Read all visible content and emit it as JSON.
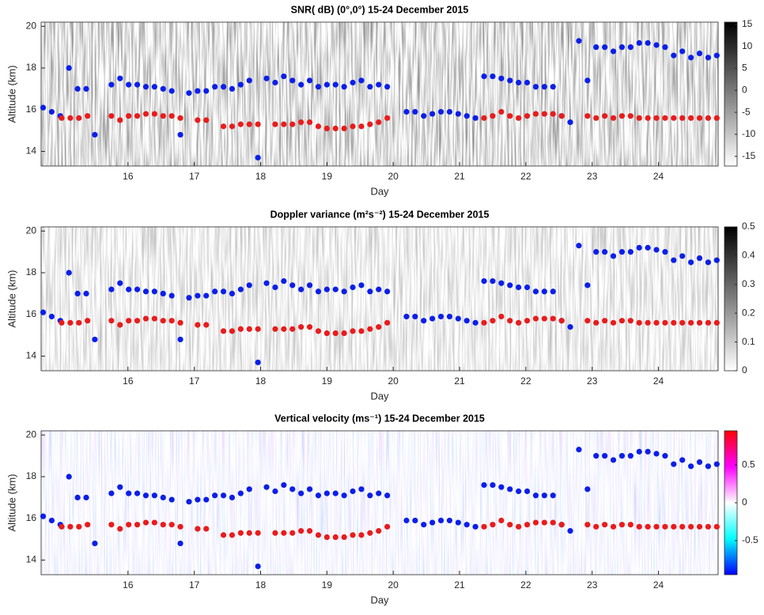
{
  "chart_data": [
    {
      "type": "scatter",
      "title": "SNR( dB) (0°,0°) 15-24 December 2015",
      "x_label": "Day",
      "y_label": "Altitude (km)",
      "xlim": [
        14.69,
        24.9
      ],
      "xticks": [
        16,
        17,
        18,
        19,
        20,
        21,
        22,
        23,
        24
      ],
      "ylim": [
        13.3,
        20.2
      ],
      "yticks": [
        14,
        16,
        18,
        20
      ],
      "clim": [
        -17.2,
        15.5
      ],
      "cticks": [
        -15,
        -10,
        -5,
        0,
        5,
        10,
        15
      ],
      "colormap": [
        "#ffffff",
        "#000000"
      ],
      "series": [
        {
          "color": "#0b1fe8",
          "x": [
            14.72,
            14.85,
            14.98,
            15.11,
            15.24,
            15.37,
            15.5,
            15.75,
            15.88,
            16.01,
            16.14,
            16.27,
            16.4,
            16.53,
            16.66,
            16.79,
            16.92,
            17.05,
            17.18,
            17.31,
            17.44,
            17.57,
            17.7,
            17.83,
            17.96,
            18.09,
            18.22,
            18.35,
            18.48,
            18.61,
            18.74,
            18.87,
            19.0,
            19.13,
            19.26,
            19.39,
            19.52,
            19.65,
            19.78,
            19.91,
            20.2,
            20.33,
            20.46,
            20.59,
            20.72,
            20.85,
            20.98,
            21.11,
            21.24,
            21.37,
            21.5,
            21.63,
            21.76,
            21.89,
            22.02,
            22.15,
            22.28,
            22.41,
            22.54,
            22.67,
            22.8,
            22.93,
            23.06,
            23.19,
            23.32,
            23.45,
            23.58,
            23.71,
            23.84,
            23.97,
            24.1,
            24.23,
            24.36,
            24.49,
            24.62,
            24.75,
            24.88
          ],
          "values": [
            16.1,
            15.9,
            15.7,
            18.0,
            17.0,
            17.0,
            14.8,
            17.2,
            17.5,
            17.2,
            17.2,
            17.1,
            17.1,
            17.0,
            16.9,
            14.8,
            16.8,
            16.9,
            16.9,
            17.1,
            17.1,
            17.0,
            17.2,
            17.4,
            13.7,
            17.5,
            17.3,
            17.6,
            17.4,
            17.2,
            17.4,
            17.1,
            17.2,
            17.2,
            17.1,
            17.3,
            17.4,
            17.1,
            17.2,
            17.1,
            15.9,
            15.9,
            15.7,
            15.8,
            15.9,
            15.9,
            15.8,
            15.7,
            15.6,
            17.6,
            17.6,
            17.5,
            17.4,
            17.3,
            17.3,
            17.1,
            17.1,
            17.1,
            15.7,
            15.4,
            19.3,
            17.4,
            19.0,
            19.0,
            18.8,
            19.0,
            19.0,
            19.2,
            19.2,
            19.1,
            19.0,
            18.6,
            18.8,
            18.5,
            18.7,
            18.5,
            18.6
          ]
        },
        {
          "color": "#e81c1c",
          "x": [
            15.0,
            15.13,
            15.26,
            15.39,
            15.75,
            15.88,
            16.01,
            16.14,
            16.27,
            16.4,
            16.53,
            16.66,
            16.79,
            17.05,
            17.18,
            17.44,
            17.57,
            17.7,
            17.83,
            17.96,
            18.22,
            18.35,
            18.48,
            18.61,
            18.74,
            18.87,
            19.0,
            19.13,
            19.26,
            19.39,
            19.52,
            19.65,
            19.78,
            19.91,
            21.37,
            21.5,
            21.63,
            21.76,
            21.89,
            22.02,
            22.15,
            22.28,
            22.41,
            22.54,
            22.93,
            23.06,
            23.19,
            23.32,
            23.45,
            23.58,
            23.71,
            23.84,
            23.97,
            24.1,
            24.23,
            24.36,
            24.49,
            24.62,
            24.75,
            24.88
          ],
          "values": [
            15.6,
            15.6,
            15.6,
            15.7,
            15.7,
            15.5,
            15.7,
            15.7,
            15.8,
            15.8,
            15.7,
            15.7,
            15.6,
            15.5,
            15.5,
            15.2,
            15.2,
            15.3,
            15.3,
            15.3,
            15.3,
            15.3,
            15.3,
            15.4,
            15.4,
            15.2,
            15.1,
            15.1,
            15.1,
            15.2,
            15.2,
            15.3,
            15.4,
            15.6,
            15.6,
            15.7,
            15.9,
            15.7,
            15.6,
            15.7,
            15.8,
            15.8,
            15.8,
            15.7,
            15.7,
            15.6,
            15.7,
            15.6,
            15.7,
            15.7,
            15.6,
            15.6,
            15.6,
            15.6,
            15.6,
            15.6,
            15.6,
            15.6,
            15.6,
            15.6
          ]
        }
      ]
    },
    {
      "type": "scatter",
      "title": "Doppler variance (m²s⁻²) 15-24 December 2015",
      "x_label": "Day",
      "y_label": "Altitude (km)",
      "xlim": [
        14.69,
        24.9
      ],
      "xticks": [
        16,
        17,
        18,
        19,
        20,
        21,
        22,
        23,
        24
      ],
      "ylim": [
        13.3,
        20.2
      ],
      "yticks": [
        14,
        16,
        18,
        20
      ],
      "clim": [
        0,
        0.5
      ],
      "cticks": [
        0,
        0.1,
        0.2,
        0.3,
        0.4,
        0.5
      ],
      "colormap": [
        "#ffffff",
        "#000000"
      ],
      "series": [
        {
          "color": "#0b1fe8",
          "x": [
            14.72,
            14.85,
            14.98,
            15.11,
            15.24,
            15.37,
            15.5,
            15.75,
            15.88,
            16.01,
            16.14,
            16.27,
            16.4,
            16.53,
            16.66,
            16.79,
            16.92,
            17.05,
            17.18,
            17.31,
            17.44,
            17.57,
            17.7,
            17.83,
            17.96,
            18.09,
            18.22,
            18.35,
            18.48,
            18.61,
            18.74,
            18.87,
            19.0,
            19.13,
            19.26,
            19.39,
            19.52,
            19.65,
            19.78,
            19.91,
            20.2,
            20.33,
            20.46,
            20.59,
            20.72,
            20.85,
            20.98,
            21.11,
            21.24,
            21.37,
            21.5,
            21.63,
            21.76,
            21.89,
            22.02,
            22.15,
            22.28,
            22.41,
            22.54,
            22.67,
            22.8,
            22.93,
            23.06,
            23.19,
            23.32,
            23.45,
            23.58,
            23.71,
            23.84,
            23.97,
            24.1,
            24.23,
            24.36,
            24.49,
            24.62,
            24.75,
            24.88
          ],
          "values": [
            16.1,
            15.9,
            15.7,
            18.0,
            17.0,
            17.0,
            14.8,
            17.2,
            17.5,
            17.2,
            17.2,
            17.1,
            17.1,
            17.0,
            16.9,
            14.8,
            16.8,
            16.9,
            16.9,
            17.1,
            17.1,
            17.0,
            17.2,
            17.4,
            13.7,
            17.5,
            17.3,
            17.6,
            17.4,
            17.2,
            17.4,
            17.1,
            17.2,
            17.2,
            17.1,
            17.3,
            17.4,
            17.1,
            17.2,
            17.1,
            15.9,
            15.9,
            15.7,
            15.8,
            15.9,
            15.9,
            15.8,
            15.7,
            15.6,
            17.6,
            17.6,
            17.5,
            17.4,
            17.3,
            17.3,
            17.1,
            17.1,
            17.1,
            15.7,
            15.4,
            19.3,
            17.4,
            19.0,
            19.0,
            18.8,
            19.0,
            19.0,
            19.2,
            19.2,
            19.1,
            19.0,
            18.6,
            18.8,
            18.5,
            18.7,
            18.5,
            18.6
          ]
        },
        {
          "color": "#e81c1c",
          "x": [
            15.0,
            15.13,
            15.26,
            15.39,
            15.75,
            15.88,
            16.01,
            16.14,
            16.27,
            16.4,
            16.53,
            16.66,
            16.79,
            17.05,
            17.18,
            17.44,
            17.57,
            17.7,
            17.83,
            17.96,
            18.22,
            18.35,
            18.48,
            18.61,
            18.74,
            18.87,
            19.0,
            19.13,
            19.26,
            19.39,
            19.52,
            19.65,
            19.78,
            19.91,
            21.37,
            21.5,
            21.63,
            21.76,
            21.89,
            22.02,
            22.15,
            22.28,
            22.41,
            22.54,
            22.93,
            23.06,
            23.19,
            23.32,
            23.45,
            23.58,
            23.71,
            23.84,
            23.97,
            24.1,
            24.23,
            24.36,
            24.49,
            24.62,
            24.75,
            24.88
          ],
          "values": [
            15.6,
            15.6,
            15.6,
            15.7,
            15.7,
            15.5,
            15.7,
            15.7,
            15.8,
            15.8,
            15.7,
            15.7,
            15.6,
            15.5,
            15.5,
            15.2,
            15.2,
            15.3,
            15.3,
            15.3,
            15.3,
            15.3,
            15.3,
            15.4,
            15.4,
            15.2,
            15.1,
            15.1,
            15.1,
            15.2,
            15.2,
            15.3,
            15.4,
            15.6,
            15.6,
            15.7,
            15.9,
            15.7,
            15.6,
            15.7,
            15.8,
            15.8,
            15.8,
            15.7,
            15.7,
            15.6,
            15.7,
            15.6,
            15.7,
            15.7,
            15.6,
            15.6,
            15.6,
            15.6,
            15.6,
            15.6,
            15.6,
            15.6,
            15.6,
            15.6
          ]
        }
      ]
    },
    {
      "type": "scatter",
      "title": "Vertical velocity (ms⁻¹) 15-24 December 2015",
      "x_label": "Day",
      "y_label": "Altitude (km)",
      "xlim": [
        14.69,
        24.9
      ],
      "xticks": [
        16,
        17,
        18,
        19,
        20,
        21,
        22,
        23,
        24
      ],
      "ylim": [
        13.3,
        20.2
      ],
      "yticks": [
        14,
        16,
        18,
        20
      ],
      "clim": [
        -0.95,
        0.95
      ],
      "cticks": [
        -0.5,
        0,
        0.5
      ],
      "colormap": [
        "#0000ff",
        "#00ffff",
        "#ffffff",
        "#ff00ff",
        "#ff0000"
      ],
      "series": [
        {
          "color": "#0b1fe8",
          "x": [
            14.72,
            14.85,
            14.98,
            15.11,
            15.24,
            15.37,
            15.5,
            15.75,
            15.88,
            16.01,
            16.14,
            16.27,
            16.4,
            16.53,
            16.66,
            16.79,
            16.92,
            17.05,
            17.18,
            17.31,
            17.44,
            17.57,
            17.7,
            17.83,
            17.96,
            18.09,
            18.22,
            18.35,
            18.48,
            18.61,
            18.74,
            18.87,
            19.0,
            19.13,
            19.26,
            19.39,
            19.52,
            19.65,
            19.78,
            19.91,
            20.2,
            20.33,
            20.46,
            20.59,
            20.72,
            20.85,
            20.98,
            21.11,
            21.24,
            21.37,
            21.5,
            21.63,
            21.76,
            21.89,
            22.02,
            22.15,
            22.28,
            22.41,
            22.54,
            22.67,
            22.8,
            22.93,
            23.06,
            23.19,
            23.32,
            23.45,
            23.58,
            23.71,
            23.84,
            23.97,
            24.1,
            24.23,
            24.36,
            24.49,
            24.62,
            24.75,
            24.88
          ],
          "values": [
            16.1,
            15.9,
            15.7,
            18.0,
            17.0,
            17.0,
            14.8,
            17.2,
            17.5,
            17.2,
            17.2,
            17.1,
            17.1,
            17.0,
            16.9,
            14.8,
            16.8,
            16.9,
            16.9,
            17.1,
            17.1,
            17.0,
            17.2,
            17.4,
            13.7,
            17.5,
            17.3,
            17.6,
            17.4,
            17.2,
            17.4,
            17.1,
            17.2,
            17.2,
            17.1,
            17.3,
            17.4,
            17.1,
            17.2,
            17.1,
            15.9,
            15.9,
            15.7,
            15.8,
            15.9,
            15.9,
            15.8,
            15.7,
            15.6,
            17.6,
            17.6,
            17.5,
            17.4,
            17.3,
            17.3,
            17.1,
            17.1,
            17.1,
            15.7,
            15.4,
            19.3,
            17.4,
            19.0,
            19.0,
            18.8,
            19.0,
            19.0,
            19.2,
            19.2,
            19.1,
            19.0,
            18.6,
            18.8,
            18.5,
            18.7,
            18.5,
            18.6
          ]
        },
        {
          "color": "#e81c1c",
          "x": [
            15.0,
            15.13,
            15.26,
            15.39,
            15.75,
            15.88,
            16.01,
            16.14,
            16.27,
            16.4,
            16.53,
            16.66,
            16.79,
            17.05,
            17.18,
            17.44,
            17.57,
            17.7,
            17.83,
            17.96,
            18.22,
            18.35,
            18.48,
            18.61,
            18.74,
            18.87,
            19.0,
            19.13,
            19.26,
            19.39,
            19.52,
            19.65,
            19.78,
            19.91,
            21.37,
            21.5,
            21.63,
            21.76,
            21.89,
            22.02,
            22.15,
            22.28,
            22.41,
            22.54,
            22.93,
            23.06,
            23.19,
            23.32,
            23.45,
            23.58,
            23.71,
            23.84,
            23.97,
            24.1,
            24.23,
            24.36,
            24.49,
            24.62,
            24.75,
            24.88
          ],
          "values": [
            15.6,
            15.6,
            15.6,
            15.7,
            15.7,
            15.5,
            15.7,
            15.7,
            15.8,
            15.8,
            15.7,
            15.7,
            15.6,
            15.5,
            15.5,
            15.2,
            15.2,
            15.3,
            15.3,
            15.3,
            15.3,
            15.3,
            15.3,
            15.4,
            15.4,
            15.2,
            15.1,
            15.1,
            15.1,
            15.2,
            15.2,
            15.3,
            15.4,
            15.6,
            15.6,
            15.7,
            15.9,
            15.7,
            15.6,
            15.7,
            15.8,
            15.8,
            15.8,
            15.7,
            15.7,
            15.6,
            15.7,
            15.6,
            15.7,
            15.7,
            15.6,
            15.6,
            15.6,
            15.6,
            15.6,
            15.6,
            15.6,
            15.6,
            15.6,
            15.6
          ]
        }
      ]
    }
  ]
}
